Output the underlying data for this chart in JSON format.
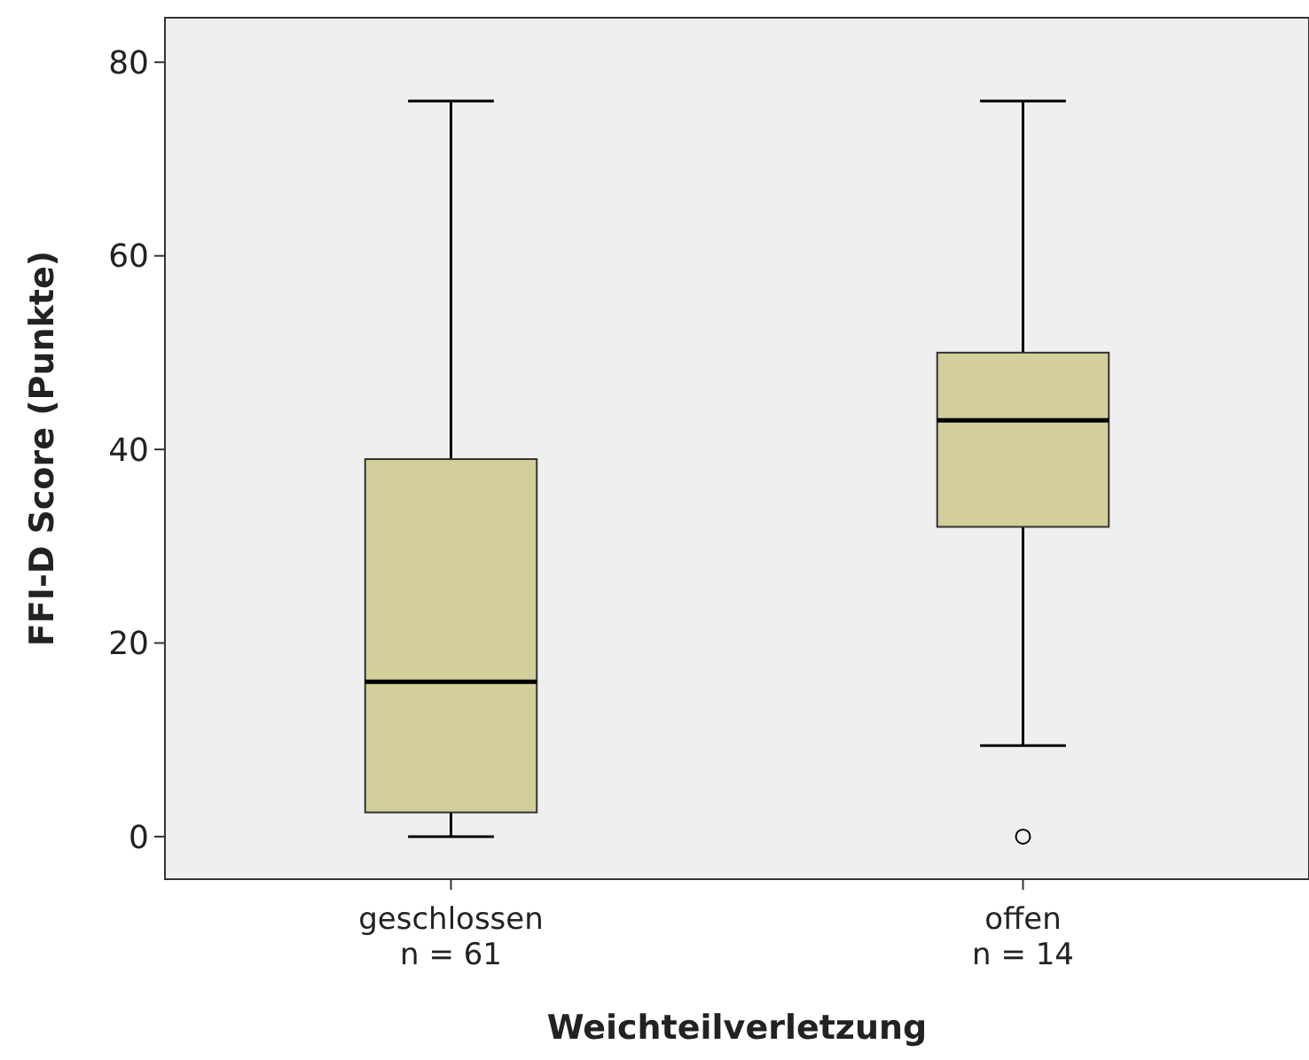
{
  "chart_data": {
    "type": "box",
    "xlabel": "Weichteilverletzung",
    "ylabel": "FFI-D Score (Punkte)",
    "categories": [
      "geschlossen\nn = 61",
      "offen\nn = 14"
    ],
    "color": "#d3cf9a",
    "boxes": [
      {
        "low": 0,
        "q1": 2.5,
        "median": 16,
        "q3": 39,
        "high": 76
      },
      {
        "low": 9.4,
        "q1": 32,
        "median": 43,
        "q3": 50,
        "high": 76,
        "outliers": [
          0
        ]
      }
    ],
    "ylim": [
      -4.4,
      84.6
    ],
    "yticks": [
      0,
      20,
      40,
      60,
      80
    ],
    "grid": false
  }
}
